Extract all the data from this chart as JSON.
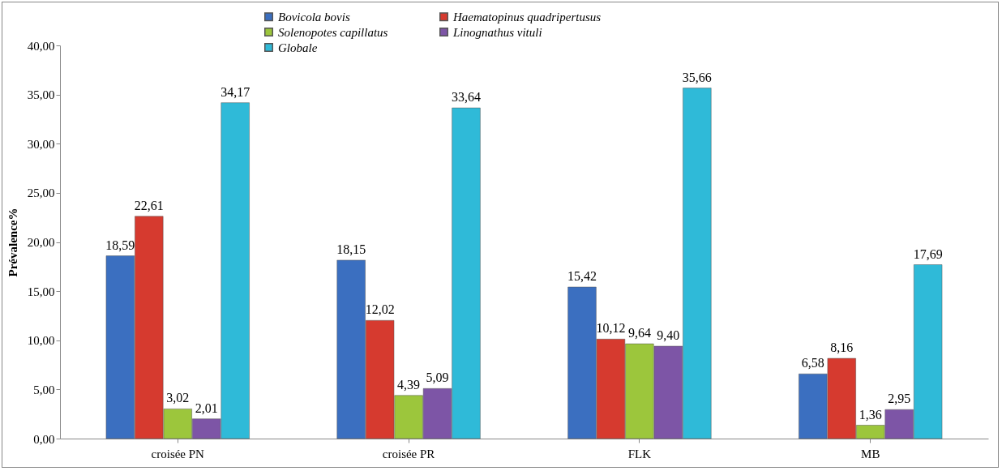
{
  "chart_data": {
    "type": "bar",
    "ylabel": "Prévalence%",
    "categories": [
      "croisée PN",
      "croisée PR",
      "FLK",
      "MB"
    ],
    "series": [
      {
        "name": "Bovicola bovis",
        "color": "#3b6fc0",
        "values": [
          18.59,
          18.15,
          15.42,
          6.58
        ],
        "value_labels": [
          "18,59",
          "18,15",
          "15,42",
          "6,58"
        ]
      },
      {
        "name": "Haematopinus quadripertusus",
        "color": "#d63a2f",
        "values": [
          22.61,
          12.02,
          10.12,
          8.16
        ],
        "value_labels": [
          "22,61",
          "12,02",
          "10,12",
          "8,16"
        ]
      },
      {
        "name": "Solenopotes capillatus",
        "color": "#9cc63c",
        "values": [
          3.02,
          4.39,
          9.64,
          1.36
        ],
        "value_labels": [
          "3,02",
          "4,39",
          "9,64",
          "1,36"
        ]
      },
      {
        "name": "Linognathus vituli",
        "color": "#7d55a6",
        "values": [
          2.01,
          5.09,
          9.4,
          2.95
        ],
        "value_labels": [
          "2,01",
          "5,09",
          "9,40",
          "2,95"
        ]
      },
      {
        "name": "Globale",
        "color": "#2fbad8",
        "values": [
          34.17,
          33.64,
          35.66,
          17.69
        ],
        "value_labels": [
          "34,17",
          "33,64",
          "35,66",
          "17,69"
        ]
      }
    ],
    "ylim": [
      0,
      40
    ],
    "yticks": [
      {
        "value": 0,
        "label": "0,00"
      },
      {
        "value": 5,
        "label": "5,00"
      },
      {
        "value": 10,
        "label": "10,00"
      },
      {
        "value": 15,
        "label": "15,00"
      },
      {
        "value": 20,
        "label": "20,00"
      },
      {
        "value": 25,
        "label": "25,00"
      },
      {
        "value": 30,
        "label": "30,00"
      },
      {
        "value": 35,
        "label": "35,00"
      },
      {
        "value": 40,
        "label": "40,00"
      }
    ],
    "grid": false,
    "legend": "top"
  }
}
